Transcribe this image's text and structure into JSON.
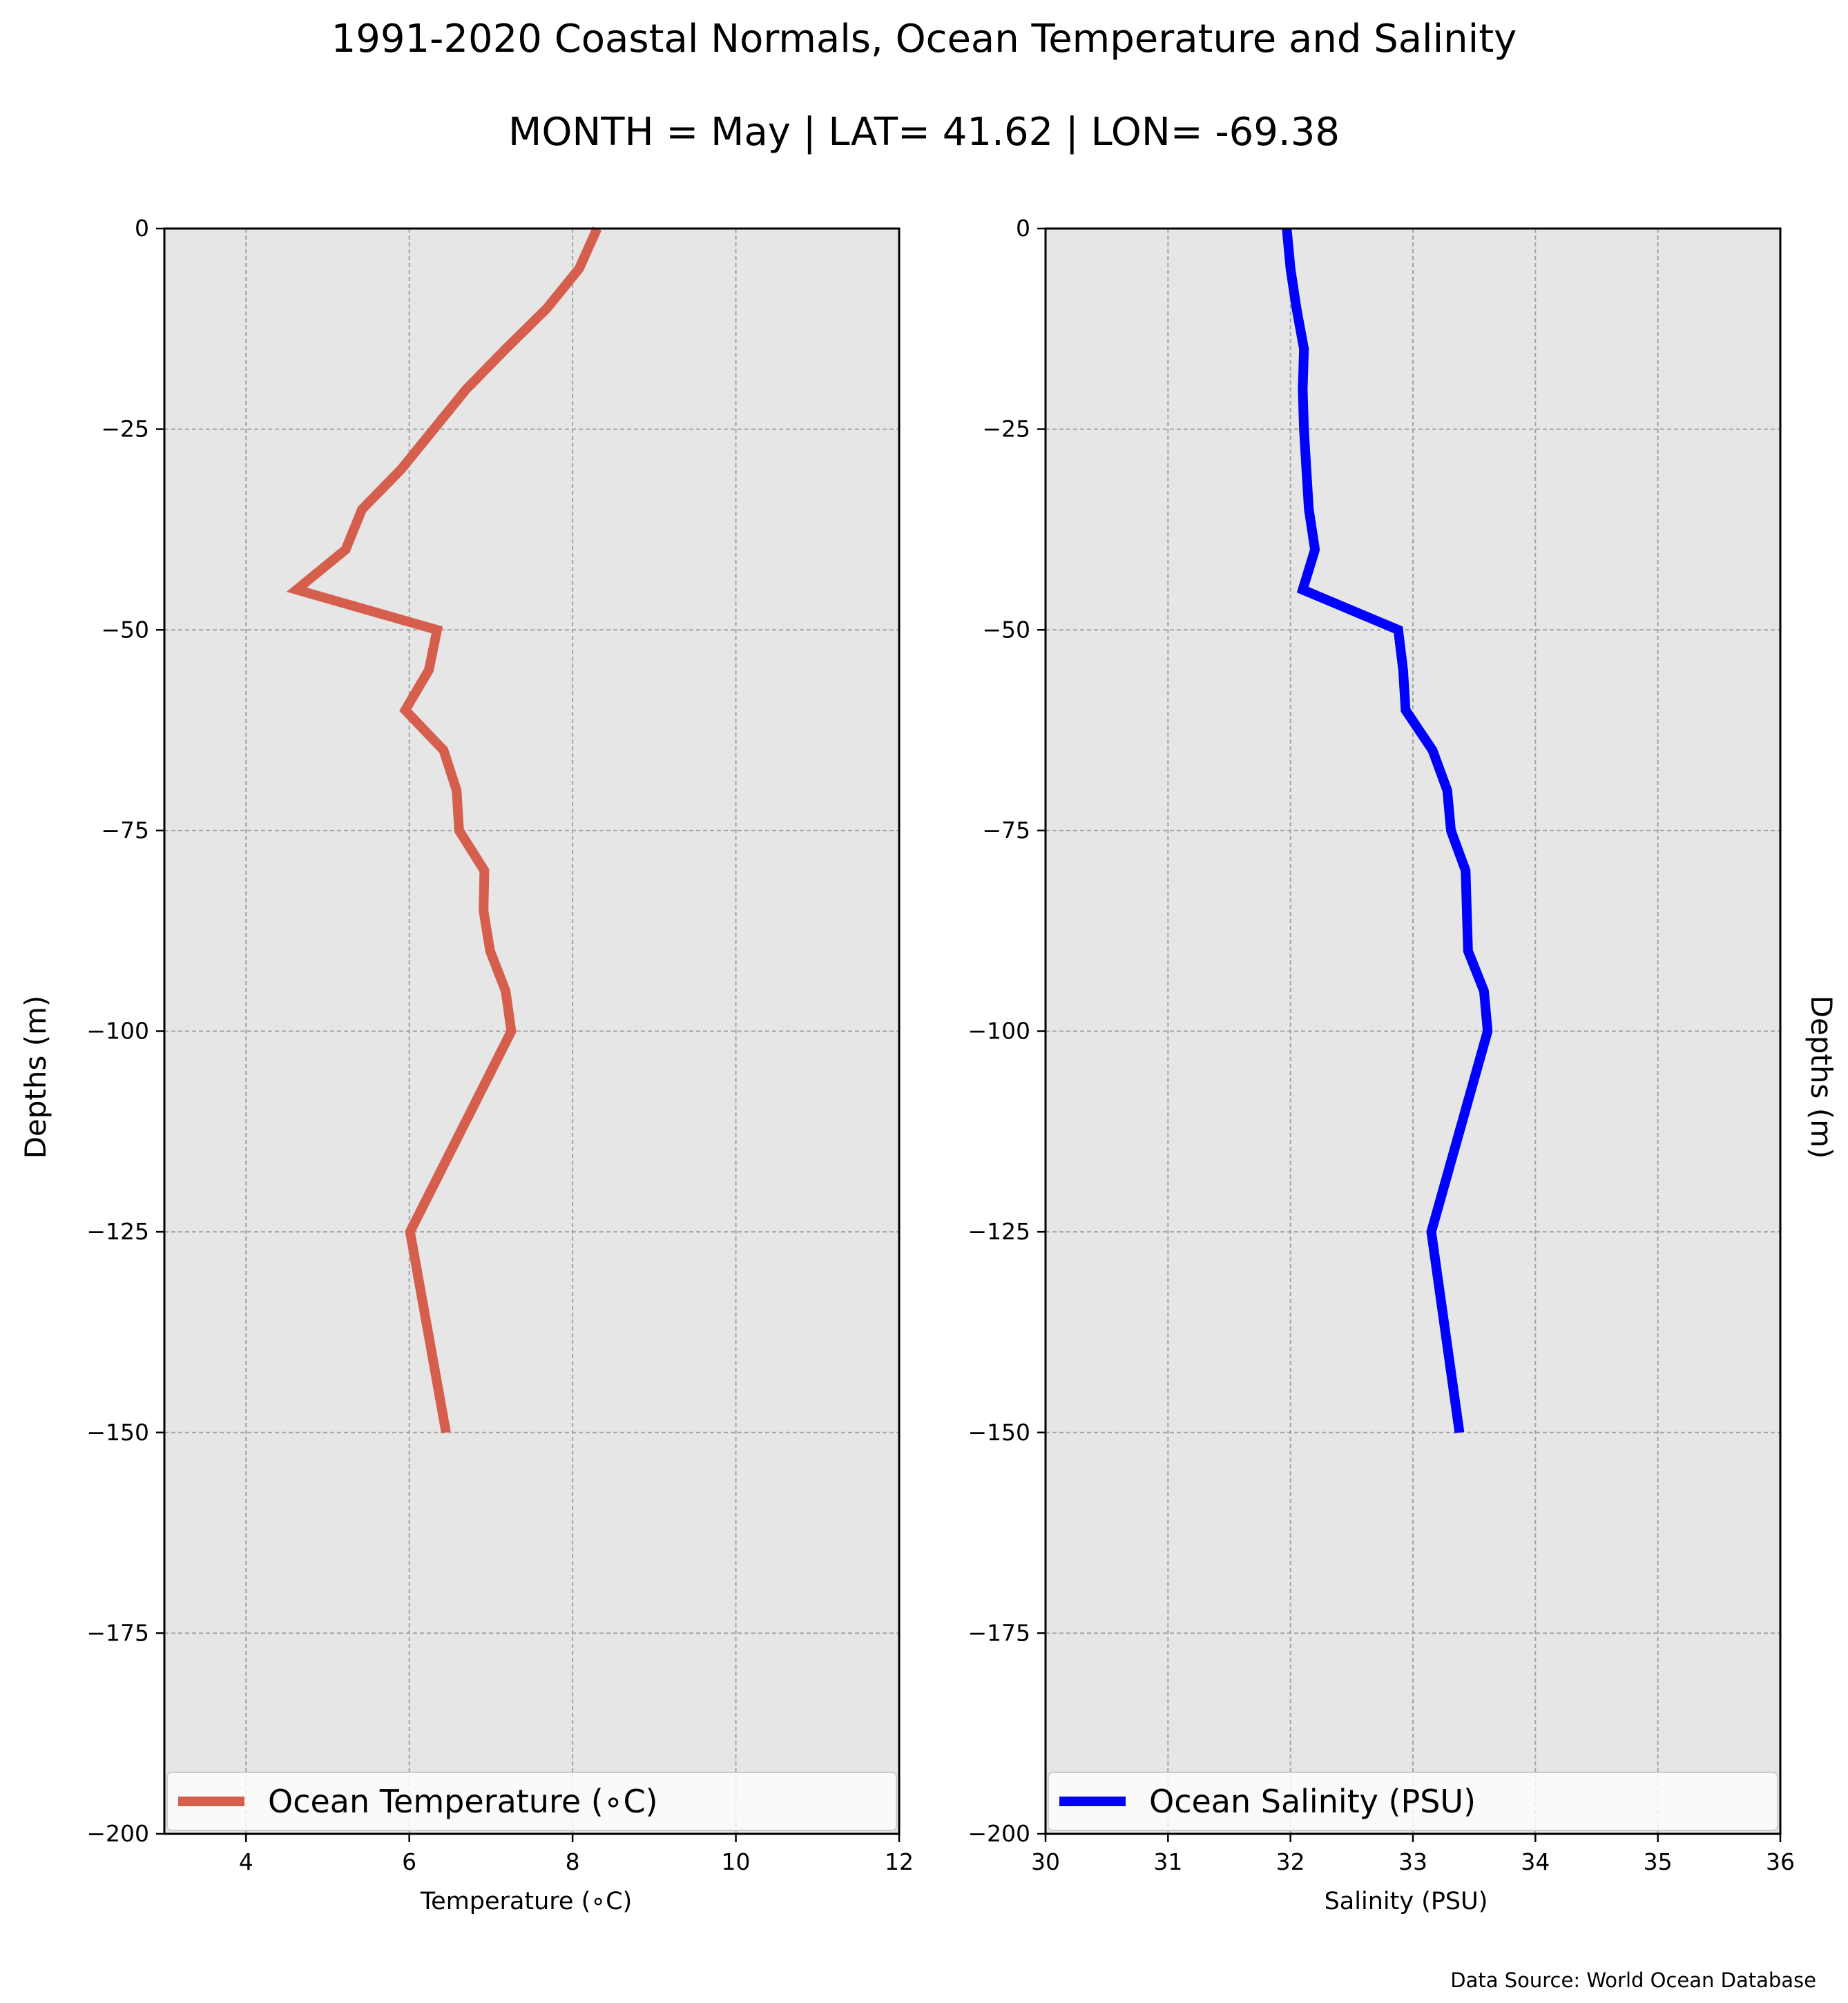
{
  "figure": {
    "title": "1991-2020 Coastal Normals, Ocean Temperature and Salinity",
    "subtitle": "MONTH = May | LAT= 41.62 | LON= -69.38",
    "source": "Data Source: World Ocean Database"
  },
  "chart_data": [
    {
      "type": "line",
      "xlabel": "Temperature ($^\\circ$C)",
      "xlabel_display": "Temperature (∘C)",
      "ylabel": "Depths (m)",
      "xlim": [
        3,
        12
      ],
      "ylim": [
        -200,
        0
      ],
      "xticks": [
        4,
        6,
        8,
        10,
        12
      ],
      "xtick_labels": [
        "4",
        "6",
        "8",
        "10",
        "12"
      ],
      "yticks": [
        0,
        -25,
        -50,
        -75,
        -100,
        -125,
        -150,
        -175,
        -200
      ],
      "ytick_labels": [
        "0",
        "−25",
        "−50",
        "−75",
        "−100",
        "−125",
        "−150",
        "−175",
        "−200"
      ],
      "grid": true,
      "legend_position": "lower center",
      "background_color": "#e6e6e6",
      "series": [
        {
          "name": "Ocean Temperature (∘C)",
          "color": "#d55e4d",
          "x": [
            8.3,
            8.08,
            7.68,
            7.18,
            6.7,
            6.3,
            5.9,
            5.42,
            5.22,
            4.62,
            6.34,
            6.24,
            5.95,
            6.42,
            6.58,
            6.61,
            6.92,
            6.91,
            6.99,
            7.18,
            7.25,
            6.01,
            6.45
          ],
          "y": [
            0,
            -5,
            -10,
            -15,
            -20,
            -25,
            -30,
            -35,
            -40,
            -45,
            -50,
            -55,
            -60,
            -65,
            -70,
            -75,
            -80,
            -85,
            -90,
            -95,
            -100,
            -125,
            -150
          ]
        }
      ]
    },
    {
      "type": "line",
      "xlabel": "Salinity (PSU)",
      "ylabel": "Depths (m)",
      "xlim": [
        30,
        36
      ],
      "ylim": [
        -200,
        0
      ],
      "xticks": [
        30,
        31,
        32,
        33,
        34,
        35,
        36
      ],
      "xtick_labels": [
        "30",
        "31",
        "32",
        "33",
        "34",
        "35",
        "36"
      ],
      "yticks": [
        0,
        -25,
        -50,
        -75,
        -100,
        -125,
        -150,
        -175,
        -200
      ],
      "ytick_labels": [
        "0",
        "−25",
        "−50",
        "−75",
        "−100",
        "−125",
        "−150",
        "−175",
        "−200"
      ],
      "grid": true,
      "legend_position": "lower center",
      "background_color": "#e6e6e6",
      "series": [
        {
          "name": "Ocean Salinity (PSU)",
          "color": "#0000ff",
          "x": [
            31.97,
            32.0,
            32.05,
            32.11,
            32.1,
            32.11,
            32.13,
            32.15,
            32.2,
            32.1,
            32.88,
            32.92,
            32.94,
            33.16,
            33.28,
            33.31,
            33.43,
            33.44,
            33.45,
            33.58,
            33.61,
            33.15,
            33.38
          ],
          "y": [
            0,
            -5,
            -10,
            -15,
            -20,
            -25,
            -30,
            -35,
            -40,
            -45,
            -50,
            -55,
            -60,
            -65,
            -70,
            -75,
            -80,
            -85,
            -90,
            -95,
            -100,
            -125,
            -150
          ]
        }
      ]
    }
  ]
}
